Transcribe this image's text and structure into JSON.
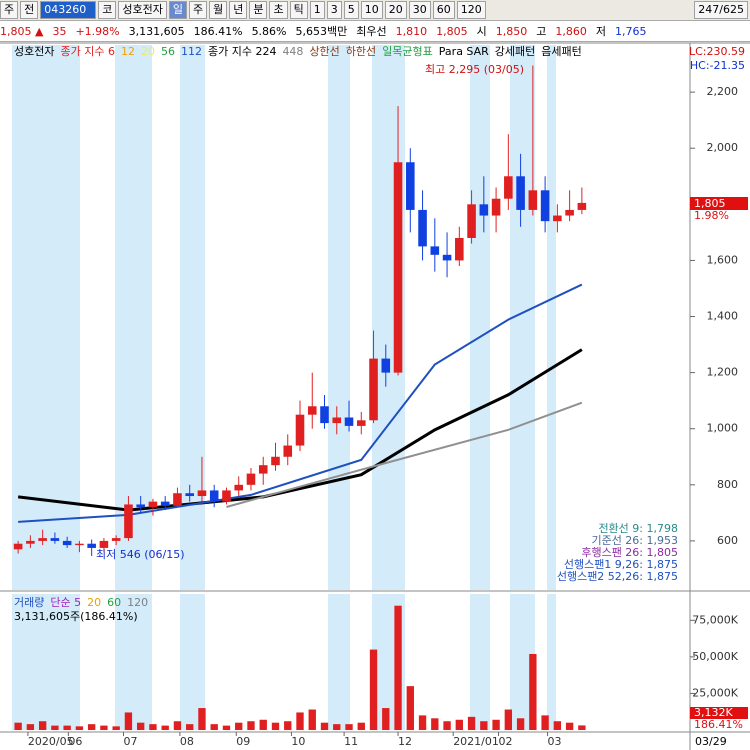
{
  "toolbar": {
    "items": [
      "주",
      "전",
      "043260",
      "코",
      "성호전자",
      "일",
      "주",
      "월",
      "년",
      "분",
      "초",
      "틱",
      "1",
      "3",
      "5",
      "10",
      "20",
      "30",
      "60",
      "120",
      "247/625"
    ]
  },
  "quote": {
    "items": [
      "1,805 ▲",
      "35",
      "+1.98%",
      "3,131,605",
      "186.41%",
      "5.86%",
      "5,653백만",
      "최우선",
      "1,810",
      "1,805",
      "시",
      "1,850",
      "고",
      "1,860",
      "저",
      "1,765"
    ]
  },
  "chart_data": [
    {
      "type": "candlestick",
      "legend": [
        {
          "text": "성호전자",
          "color": "#000000"
        },
        {
          "text": "종가 지수 6",
          "color": "#e02020"
        },
        {
          "text": "12",
          "color": "#f0a000"
        },
        {
          "text": "20",
          "color": "#e8e870"
        },
        {
          "text": "56",
          "color": "#20a040"
        },
        {
          "text": "112",
          "color": "#2050c0"
        },
        {
          "text": "종가 지수 224",
          "color": "#000000"
        },
        {
          "text": "448",
          "color": "#808080"
        },
        {
          "text": "상한선",
          "color": "#8b3a10"
        },
        {
          "text": "하한선",
          "color": "#8b3a10"
        },
        {
          "text": "일목균형표",
          "color": "#20a040"
        },
        {
          "text": "Para SAR",
          "color": "#000000"
        },
        {
          "text": "강세패턴",
          "color": "#000000"
        },
        {
          "text": "음세패턴",
          "color": "#000000"
        }
      ],
      "lc": "LC:230.59",
      "hc": "HC:-21.35",
      "high_note": "최고 2,295 (03/05)",
      "low_note": "최저 546 (06/15)",
      "price_tag": {
        "price": "1,805",
        "change": "1.98%"
      },
      "info": [
        {
          "text": "전환선 9: 1,798",
          "color": "#2a8a8a"
        },
        {
          "text": "기준선 26: 1,953",
          "color": "#4a6a9a"
        },
        {
          "text": "후행스팬 26: 1,805",
          "color": "#8a2aa0"
        },
        {
          "text": "선행스팬1 9,26: 1,875",
          "color": "#2050c0"
        },
        {
          "text": "선행스팬2 52,26: 1,875",
          "color": "#2050c0"
        }
      ],
      "open": [
        570,
        590,
        600,
        610,
        600,
        585,
        590,
        575,
        600,
        610,
        730,
        720,
        740,
        725,
        770,
        760,
        780,
        740,
        780,
        800,
        840,
        870,
        900,
        940,
        1050,
        1080,
        1020,
        1040,
        1010,
        1030,
        1250,
        1200,
        1950,
        1780,
        1650,
        1620,
        1600,
        1680,
        1800,
        1760,
        1820,
        1900,
        1780,
        1850,
        1740,
        1760,
        1780
      ],
      "high": [
        600,
        620,
        640,
        630,
        615,
        600,
        605,
        610,
        620,
        760,
        760,
        750,
        760,
        790,
        800,
        900,
        800,
        790,
        830,
        860,
        900,
        950,
        980,
        1100,
        1200,
        1120,
        1080,
        1100,
        1060,
        1350,
        1300,
        2150,
        2000,
        1850,
        1750,
        1700,
        1720,
        1850,
        1900,
        1860,
        2050,
        1980,
        2295,
        1900,
        1800,
        1850,
        1860
      ],
      "low": [
        555,
        575,
        585,
        590,
        575,
        560,
        546,
        560,
        585,
        600,
        700,
        690,
        710,
        720,
        740,
        740,
        720,
        730,
        760,
        780,
        800,
        850,
        870,
        920,
        1000,
        1000,
        980,
        990,
        980,
        1020,
        1150,
        1190,
        1700,
        1600,
        1560,
        1540,
        1580,
        1660,
        1700,
        1700,
        1780,
        1720,
        1760,
        1700,
        1700,
        1740,
        1765
      ],
      "close": [
        590,
        600,
        610,
        600,
        585,
        590,
        575,
        600,
        610,
        730,
        720,
        740,
        725,
        770,
        760,
        780,
        740,
        780,
        800,
        840,
        870,
        900,
        940,
        1050,
        1080,
        1020,
        1040,
        1010,
        1030,
        1250,
        1200,
        1950,
        1780,
        1650,
        1620,
        1600,
        1680,
        1800,
        1760,
        1820,
        1900,
        1780,
        1850,
        1740,
        1760,
        1780,
        1805
      ],
      "up_color": "#e02020",
      "down_color": "#1040e0",
      "overlays": [
        {
          "color": "#000000",
          "width": 3,
          "x": [
            0,
            9,
            20,
            28,
            34,
            40,
            46
          ],
          "values": [
            757,
            710,
            757,
            836,
            996,
            1121,
            1282
          ]
        },
        {
          "color": "#909090",
          "width": 2,
          "x": [
            17,
            28,
            40,
            46
          ],
          "values": [
            721,
            854,
            996,
            1093
          ]
        },
        {
          "color": "#2050c0",
          "width": 2,
          "x": [
            0,
            9,
            19,
            28,
            34,
            40,
            46
          ],
          "values": [
            668,
            693,
            764,
            889,
            1229,
            1389,
            1514
          ]
        }
      ],
      "ylim": [
        425,
        2368
      ],
      "yticks": [
        600,
        800,
        {
          "value": 1000,
          "label": "1,000"
        },
        {
          "value": 1200,
          "label": "1,200"
        },
        {
          "value": 1400,
          "label": "1,400"
        },
        {
          "value": 1600,
          "label": "1,600"
        },
        {
          "value": 2000,
          "label": "2,000"
        },
        {
          "value": 2200,
          "label": "2,200"
        }
      ],
      "xticks": [
        {
          "value": 0.8,
          "label": "2020/05"
        },
        {
          "value": 4.1,
          "label": "06"
        },
        {
          "value": 8.6,
          "label": "07"
        },
        {
          "value": 13.2,
          "label": "08"
        },
        {
          "value": 17.8,
          "label": "09"
        },
        {
          "value": 22.3,
          "label": "10"
        },
        {
          "value": 26.6,
          "label": "11"
        },
        {
          "value": 31,
          "label": "12"
        },
        {
          "value": 35.5,
          "label": "2021/01"
        },
        {
          "value": 39.2,
          "label": "02"
        },
        {
          "value": 43.2,
          "label": "03"
        }
      ],
      "last_date": "03/29"
    },
    {
      "type": "bar",
      "legend": [
        {
          "text": "거래량",
          "color": "#2050c0"
        },
        {
          "text": "단순 5",
          "color": "#a020c0"
        },
        {
          "text": "20",
          "color": "#f0a000"
        },
        {
          "text": "60",
          "color": "#20a040"
        },
        {
          "text": "120",
          "color": "#808080"
        }
      ],
      "summary": "3,131,605주(186.41%)",
      "tag": {
        "value": "3,132K",
        "pct": "186.41%"
      },
      "values": [
        5000,
        4000,
        6000,
        3000,
        3000,
        2500,
        4000,
        3000,
        2500,
        12000,
        5000,
        4000,
        3000,
        6000,
        4000,
        15000,
        4000,
        3000,
        5000,
        6000,
        7000,
        5000,
        6000,
        12000,
        14000,
        5000,
        4000,
        4000,
        5000,
        55000,
        15000,
        85000,
        30000,
        10000,
        8000,
        6000,
        7000,
        9000,
        6000,
        7000,
        14000,
        8000,
        52000,
        10000,
        6000,
        5000,
        3132
      ],
      "color": "#e02020",
      "ylim": [
        0,
        93000
      ],
      "yticks": [
        {
          "value": 25000,
          "label": "25,000K"
        },
        {
          "value": 50000,
          "label": "50,000K"
        },
        {
          "value": 75000,
          "label": "75,000K"
        }
      ]
    }
  ]
}
